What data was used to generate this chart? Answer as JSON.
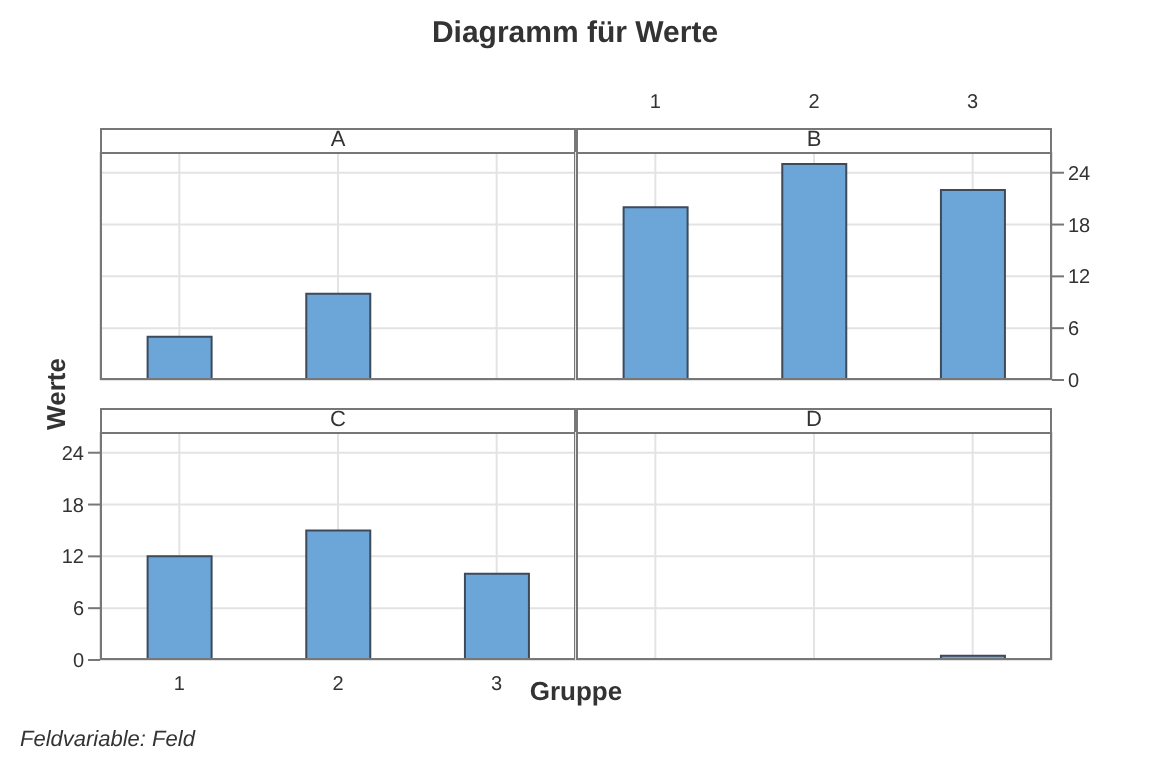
{
  "chart_data": [
    {
      "type": "bar",
      "title": "Diagramm für Werte",
      "subtitle": "A",
      "xlabel": "Gruppe",
      "ylabel": "Werte",
      "annotations": [
        "Feldvariable: Feld"
      ],
      "categories": [
        "1",
        "2",
        "3"
      ],
      "values": [
        5,
        10,
        null
      ],
      "color": "#6ca6d9",
      "ylim": [
        0,
        26.4
      ],
      "yticks": [
        0,
        6,
        12,
        18,
        24
      ],
      "grid": true,
      "tick_labels": false
    },
    {
      "type": "bar",
      "subtitle": "B",
      "categories": [
        "1",
        "2",
        "3"
      ],
      "values": [
        20,
        25,
        22
      ],
      "color": "#6ca6d9",
      "ylim": [
        0,
        26.4
      ],
      "yticks": [
        0,
        6,
        12,
        18,
        24
      ],
      "grid": true
    },
    {
      "type": "bar",
      "subtitle": "C",
      "categories": [
        "1",
        "2",
        "3"
      ],
      "values": [
        12,
        15,
        10
      ],
      "color": "#6ca6d9",
      "ylim": [
        0,
        26.4
      ],
      "yticks": [
        0,
        6,
        12,
        18,
        24
      ],
      "grid": true
    },
    {
      "type": "bar",
      "subtitle": "D",
      "categories": [
        "1",
        "2",
        "3"
      ],
      "values": [
        null,
        null,
        0.5
      ],
      "color": "#6ca6d9",
      "ylim": [
        0,
        26.4
      ],
      "yticks": [
        0,
        6,
        12,
        18,
        24
      ],
      "grid": true,
      "tick_labels": false
    }
  ]
}
